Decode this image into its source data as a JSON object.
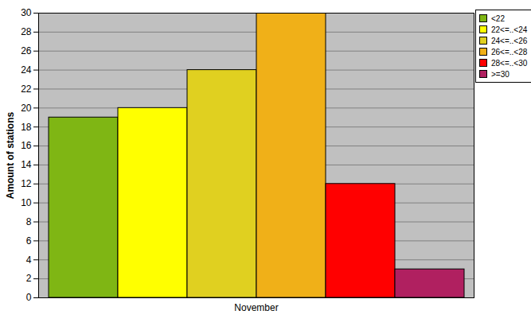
{
  "chart_data": {
    "type": "bar",
    "categories": [
      "November"
    ],
    "series": [
      {
        "name": "<22",
        "color": "#7fb614",
        "values": [
          19
        ]
      },
      {
        "name": "22<=..<24",
        "color": "#ffff00",
        "values": [
          20
        ]
      },
      {
        "name": "24<=..<26",
        "color": "#e0d020",
        "values": [
          24
        ]
      },
      {
        "name": "26<=..<28",
        "color": "#f0b018",
        "values": [
          30
        ]
      },
      {
        "name": "28<=..<30",
        "color": "#ff0000",
        "values": [
          12
        ]
      },
      {
        "name": ">=30",
        "color": "#b02060",
        "values": [
          3
        ]
      }
    ],
    "y_label": "Amount of stations",
    "ylim": [
      0,
      30
    ],
    "yticks": [
      0,
      2,
      4,
      6,
      8,
      10,
      12,
      14,
      16,
      18,
      20,
      22,
      24,
      26,
      28,
      30
    ],
    "grid": true,
    "legend": "top-right"
  }
}
